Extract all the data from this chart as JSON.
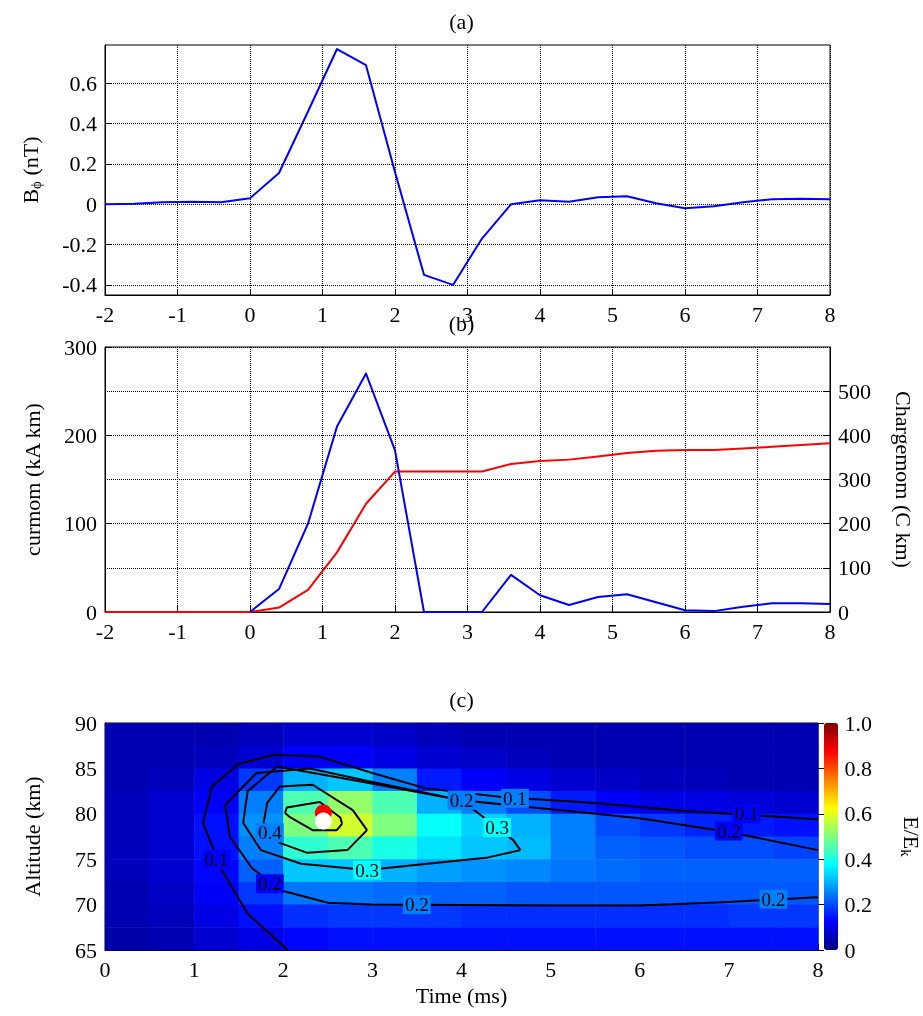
{
  "chart_data": [
    {
      "type": "line",
      "title": "(a)",
      "ylabel": "B$_{ϕ}$ (nT)",
      "xlim": [
        -2,
        8
      ],
      "xticks": [
        -2,
        -1,
        0,
        1,
        2,
        3,
        4,
        5,
        6,
        7,
        8
      ],
      "ylim": [
        -0.45,
        0.79
      ],
      "yticks": [
        -0.4,
        -0.2,
        0,
        0.2,
        0.4,
        0.6
      ],
      "grid": true,
      "series": [
        {
          "color": "#0000ff",
          "x": [
            -2,
            -1.6,
            -1.2,
            -0.8,
            -0.4,
            0,
            0.4,
            0.8,
            1.2,
            1.6,
            2,
            2.4,
            2.8,
            3.2,
            3.6,
            4,
            4.4,
            4.8,
            5.2,
            5.6,
            6,
            6.4,
            6.8,
            7.2,
            7.6,
            8
          ],
          "values": [
            0,
            0.002,
            0.01,
            0.012,
            0.01,
            0.03,
            0.155,
            0.46,
            0.77,
            0.69,
            0.16,
            -0.35,
            -0.4,
            -0.17,
            0,
            0.02,
            0.012,
            0.035,
            0.04,
            0.005,
            -0.02,
            -0.01,
            0.01,
            0.025,
            0.027,
            0.025
          ]
        }
      ]
    },
    {
      "type": "line",
      "title": "(b)",
      "ylabel": "curmom (kA km)",
      "y2label": "Chargemom (C km)",
      "xlim": [
        -2,
        8
      ],
      "xticks": [
        -2,
        -1,
        0,
        1,
        2,
        3,
        4,
        5,
        6,
        7,
        8
      ],
      "ylim": [
        0,
        300
      ],
      "yticks": [
        0,
        100,
        200,
        300
      ],
      "y2lim": [
        0,
        600
      ],
      "y2ticks": [
        0,
        100,
        200,
        300,
        400,
        500
      ],
      "grid": true,
      "series": [
        {
          "color": "#ff0000",
          "axis": "y2",
          "x": [
            -2,
            -1.6,
            -1.2,
            -0.8,
            -0.4,
            0,
            0.4,
            0.8,
            1.2,
            1.6,
            2,
            2.4,
            2.8,
            3.2,
            3.6,
            4,
            4.4,
            4.8,
            5.2,
            5.6,
            6,
            6.4,
            6.8,
            7.2,
            7.6,
            8
          ],
          "values": [
            0,
            0,
            0,
            0,
            0,
            0,
            10,
            50,
            135,
            245,
            318,
            318,
            318,
            318,
            335,
            342,
            345,
            352,
            360,
            365,
            367,
            367,
            370,
            374,
            378,
            382
          ]
        },
        {
          "color": "#0000ff",
          "x": [
            0,
            0.4,
            0.8,
            1.2,
            1.6,
            2,
            2.4,
            2.8,
            3.2,
            3.6,
            4,
            4.4,
            4.8,
            5.2,
            5.6,
            6,
            6.4,
            6.8,
            7.2,
            7.6,
            8
          ],
          "values": [
            0,
            26,
            100,
            210,
            270,
            183,
            0,
            0,
            0,
            42,
            19,
            8,
            17,
            20,
            11,
            2,
            1,
            6,
            10,
            10,
            9
          ]
        }
      ]
    },
    {
      "type": "heatmap",
      "title": "(c)",
      "xlabel": "Time (ms)",
      "ylabel": "Altitude (km)",
      "clabel": "E/E$_{k}$",
      "xlim": [
        0,
        8
      ],
      "xticks": [
        0,
        1,
        2,
        3,
        4,
        5,
        6,
        7,
        8
      ],
      "ylim": [
        65,
        90
      ],
      "yticks": [
        65,
        70,
        75,
        80,
        85,
        90
      ],
      "clim": [
        0,
        1
      ],
      "cticks": [
        0,
        0.2,
        0.4,
        0.6,
        0.8,
        {
          "value": 1,
          "label": "1.0"
        }
      ],
      "x": [
        0.25,
        0.75,
        1.25,
        1.75,
        2.25,
        2.75,
        3.25,
        3.75,
        4.25,
        4.75,
        5.25,
        5.75,
        6.25,
        6.75,
        7.25,
        7.75
      ],
      "cells": [
        [
          0.05,
          0.05,
          0.05,
          0.06,
          0.08,
          0.08,
          0.07,
          0.06,
          0.05,
          0.05,
          0.05,
          0.05,
          0.05,
          0.05,
          0.05,
          0.05
        ],
        [
          0.05,
          0.05,
          0.06,
          0.08,
          0.12,
          0.12,
          0.1,
          0.08,
          0.07,
          0.06,
          0.05,
          0.05,
          0.05,
          0.05,
          0.05,
          0.05
        ],
        [
          0.05,
          0.06,
          0.1,
          0.18,
          0.3,
          0.32,
          0.25,
          0.15,
          0.12,
          0.1,
          0.08,
          0.07,
          0.06,
          0.06,
          0.05,
          0.05
        ],
        [
          0.06,
          0.08,
          0.12,
          0.25,
          0.45,
          0.52,
          0.45,
          0.3,
          0.25,
          0.2,
          0.15,
          0.12,
          0.1,
          0.1,
          0.09,
          0.08
        ],
        [
          0.06,
          0.08,
          0.14,
          0.27,
          0.5,
          0.58,
          0.5,
          0.38,
          0.33,
          0.3,
          0.25,
          0.2,
          0.18,
          0.16,
          0.15,
          0.14
        ],
        [
          0.06,
          0.08,
          0.14,
          0.25,
          0.42,
          0.45,
          0.4,
          0.35,
          0.32,
          0.31,
          0.25,
          0.22,
          0.21,
          0.2,
          0.2,
          0.19
        ],
        [
          0.06,
          0.08,
          0.13,
          0.22,
          0.32,
          0.32,
          0.3,
          0.28,
          0.27,
          0.26,
          0.24,
          0.23,
          0.22,
          0.22,
          0.22,
          0.22
        ],
        [
          0.05,
          0.07,
          0.12,
          0.18,
          0.24,
          0.24,
          0.23,
          0.22,
          0.22,
          0.21,
          0.21,
          0.21,
          0.21,
          0.21,
          0.21,
          0.21
        ],
        [
          0.05,
          0.06,
          0.1,
          0.14,
          0.17,
          0.18,
          0.18,
          0.18,
          0.17,
          0.17,
          0.17,
          0.17,
          0.17,
          0.17,
          0.18,
          0.18
        ],
        [
          0.04,
          0.05,
          0.08,
          0.1,
          0.13,
          0.14,
          0.14,
          0.14,
          0.14,
          0.14,
          0.14,
          0.14,
          0.14,
          0.14,
          0.14,
          0.14
        ]
      ],
      "series": [
        {
          "type": "line",
          "color": "#000000",
          "x": [
            8,
            7.5,
            6.5,
            5.5,
            4.5,
            3.6,
            3,
            2.4,
            1.9,
            1.5,
            1.2,
            1.1,
            1.3,
            1.6,
            2.05
          ],
          "values": [
            79.4,
            79.7,
            80.3,
            81.2,
            81.8,
            82.8,
            84.5,
            86.3,
            86.5,
            85.5,
            83,
            79,
            74,
            69,
            65
          ]
        },
        {
          "type": "line",
          "color": "#000000",
          "x": [
            8,
            7,
            6,
            5,
            4,
            3,
            2.3,
            1.7,
            1.35,
            1.4,
            1.65,
            2,
            2.5,
            3,
            5,
            6,
            7,
            8
          ],
          "values": [
            76,
            78,
            79.5,
            80.5,
            81.5,
            83.5,
            85,
            84.5,
            81,
            77.5,
            74,
            71.5,
            70.2,
            70,
            69.9,
            69.9,
            70.3,
            70.8
          ]
        },
        {
          "type": "line",
          "color": "#000000",
          "x": [
            1.55,
            1.6,
            1.93,
            2.9,
            4,
            4.58,
            4.66
          ],
          "values": [
            79,
            82.5,
            85.2,
            83.5,
            81.5,
            77.1,
            76
          ]
        },
        {
          "type": "line",
          "color": "#000000",
          "x": [
            1.55,
            1.75,
            2.2,
            2.94,
            4.3,
            4.66
          ],
          "values": [
            79,
            76,
            74.5,
            73.8,
            75.2,
            76
          ]
        },
        {
          "type": "line",
          "color": "#000000",
          "x": [
            1.78,
            1.82,
            1.96,
            2.33,
            2.78,
            2.94
          ],
          "values": [
            79,
            81.2,
            83,
            83.2,
            80.4,
            78.2
          ]
        },
        {
          "type": "line",
          "color": "#000000",
          "x": [
            1.78,
            1.96,
            2.27,
            2.72,
            2.94
          ],
          "values": [
            79,
            76.8,
            75.7,
            76,
            78.2
          ]
        },
        {
          "type": "line",
          "color": "#000000",
          "x": [
            2.02,
            2.04,
            2.41,
            2.64,
            2.66
          ],
          "values": [
            80.1,
            80.7,
            81.3,
            79.6,
            78.9
          ]
        },
        {
          "type": "line",
          "color": "#000000",
          "x": [
            2.02,
            2.08,
            2.33,
            2.6,
            2.66
          ],
          "values": [
            80.1,
            79.6,
            78.2,
            78.2,
            78.9
          ]
        },
        {
          "type": "scatter",
          "x": [
            2.45,
            2.45
          ],
          "values": [
            80.1,
            79.2
          ],
          "colors": [
            "#ff0000",
            "#ffffff"
          ]
        }
      ],
      "annotations": [
        {
          "text": "0.1",
          "x": 4.6,
          "y": 81.7
        },
        {
          "text": "0.1",
          "x": 7.2,
          "y": 80
        },
        {
          "text": "0.1",
          "x": 1.25,
          "y": 75
        },
        {
          "text": "0.2",
          "x": 4,
          "y": 81.5
        },
        {
          "text": "0.2",
          "x": 7,
          "y": 78.1
        },
        {
          "text": "0.2",
          "x": 3.5,
          "y": 70
        },
        {
          "text": "0.2",
          "x": 7.5,
          "y": 70.6
        },
        {
          "text": "0.2",
          "x": 1.85,
          "y": 72.3
        },
        {
          "text": "0.3",
          "x": 4.4,
          "y": 78.5
        },
        {
          "text": "0.3",
          "x": 2.94,
          "y": 73.8
        },
        {
          "text": "0.4",
          "x": 1.85,
          "y": 77.9
        }
      ]
    }
  ]
}
